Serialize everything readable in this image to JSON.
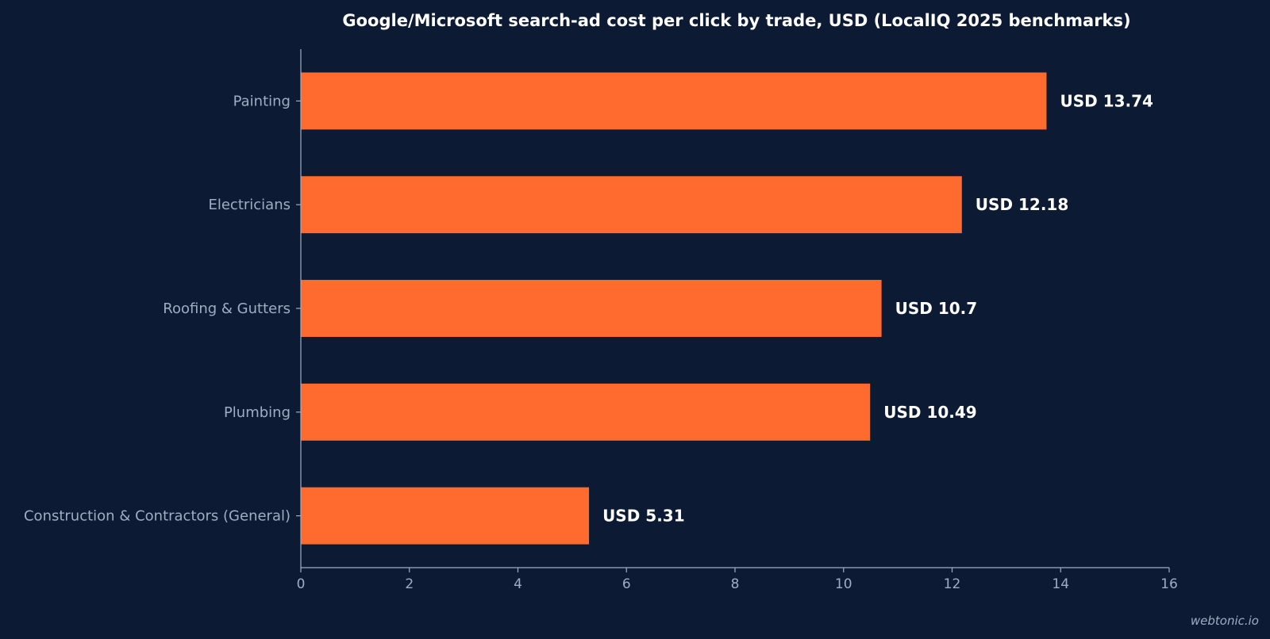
{
  "chart_data": {
    "type": "bar",
    "orientation": "horizontal",
    "title": "Google/Microsoft search-ad cost per click by trade, USD (LocalIQ 2025 benchmarks)",
    "categories": [
      "Painting",
      "Electricians",
      "Roofing & Gutters",
      "Plumbing",
      "Construction & Contractors (General)"
    ],
    "values": [
      13.74,
      12.18,
      10.7,
      10.49,
      5.31
    ],
    "value_labels": [
      "USD 13.74",
      "USD 12.18",
      "USD 10.7",
      "USD 10.49",
      "USD 5.31"
    ],
    "xlim": [
      0,
      16
    ],
    "x_ticks": [
      "0",
      "2",
      "4",
      "6",
      "8",
      "10",
      "12",
      "14",
      "16"
    ],
    "xlabel": "",
    "ylabel": "",
    "grid": false,
    "colors": {
      "background": "#0c1b33",
      "bar": "#ff6b2e",
      "axis": "#9fadc4",
      "text": "#ffffff"
    }
  },
  "watermark": "webtonic.io"
}
